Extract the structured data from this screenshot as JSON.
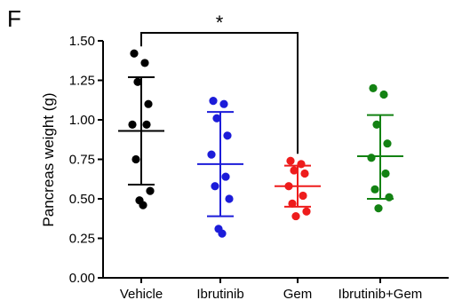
{
  "panel_label": "F",
  "chart_data": {
    "type": "scatter",
    "ylabel": "Pancreas weight (g)",
    "xlabel": "",
    "ylim": [
      0,
      1.5
    ],
    "yticks": [
      "0.00",
      "0.25",
      "0.50",
      "0.75",
      "1.00",
      "1.25",
      "1.50"
    ],
    "categories": [
      "Vehicle",
      "Ibrutinib",
      "Gem",
      "Ibrutinib+Gem"
    ],
    "grid": false,
    "legend": "none",
    "series": [
      {
        "category": "Vehicle",
        "color": "#000000",
        "points": [
          1.42,
          1.36,
          1.24,
          1.1,
          0.97,
          0.97,
          0.75,
          0.55,
          0.49,
          0.46
        ],
        "mean": 0.93,
        "sd_upper": 1.27,
        "sd_lower": 0.59
      },
      {
        "category": "Ibrutinib",
        "color": "#1c1cd9",
        "points": [
          1.12,
          1.1,
          1.01,
          0.9,
          0.78,
          0.64,
          0.58,
          0.5,
          0.31,
          0.28
        ],
        "mean": 0.72,
        "sd_upper": 1.05,
        "sd_lower": 0.39
      },
      {
        "category": "Gem",
        "color": "#ee1c1c",
        "points": [
          0.74,
          0.72,
          0.68,
          0.66,
          0.58,
          0.52,
          0.47,
          0.42,
          0.39
        ],
        "mean": 0.58,
        "sd_upper": 0.71,
        "sd_lower": 0.45
      },
      {
        "category": "Ibrutinib+Gem",
        "color": "#138213",
        "points": [
          1.2,
          1.16,
          0.97,
          0.85,
          0.76,
          0.66,
          0.56,
          0.51,
          0.44
        ],
        "mean": 0.77,
        "sd_upper": 1.03,
        "sd_lower": 0.5
      }
    ],
    "annotations": [
      {
        "type": "significance-bracket",
        "from": "Vehicle",
        "to": "Gem",
        "label": "*"
      }
    ]
  }
}
